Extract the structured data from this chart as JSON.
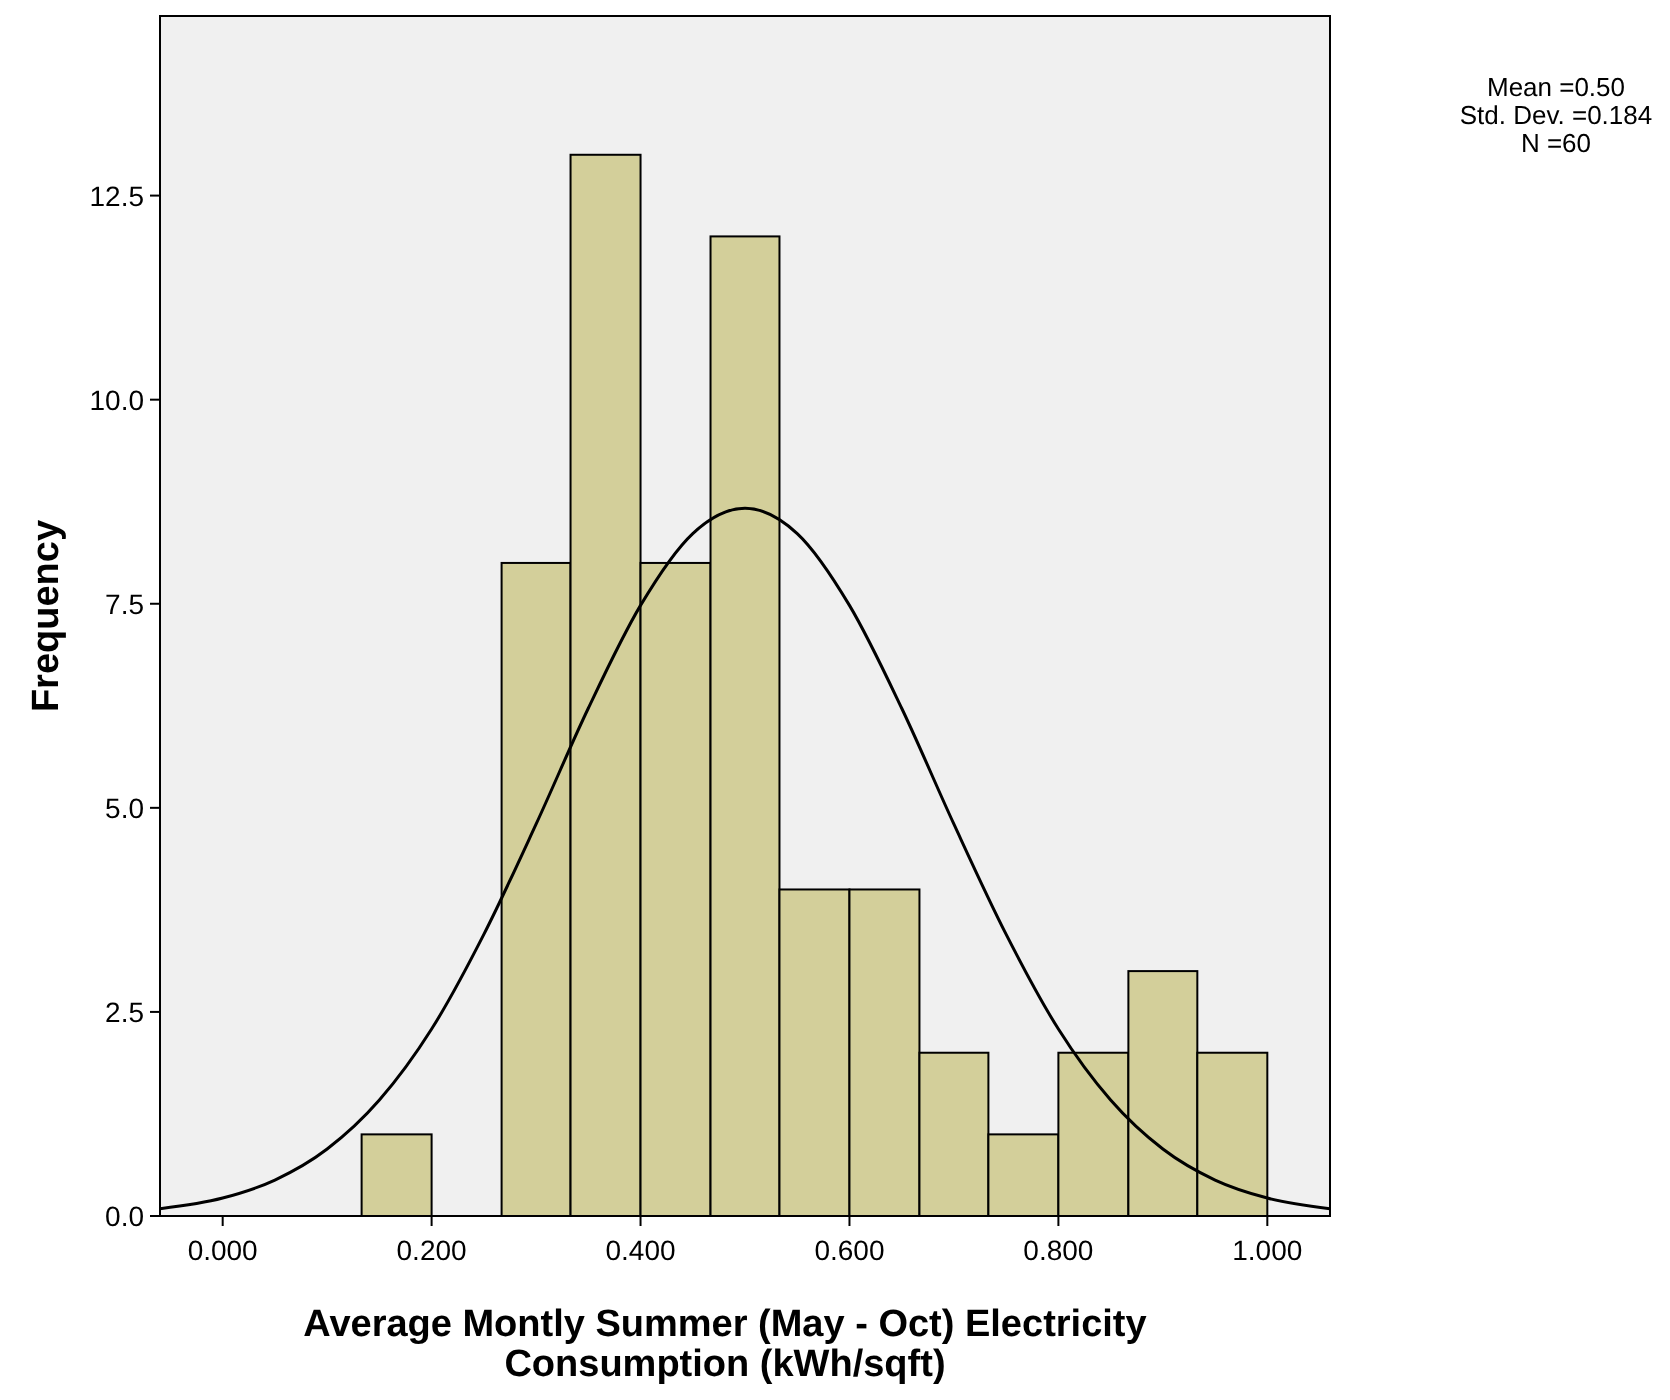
{
  "chart_data": {
    "type": "histogram",
    "xlabel": "Average Montly Summer (May - Oct) Electricity Consumption (kWh/sqft)",
    "ylabel": "Frequency",
    "annotations": [
      "Mean =0.50",
      "Std. Dev. =0.184",
      "N =60"
    ],
    "series": [
      {
        "color": "#d3cf9a",
        "bins": [
          0.133,
          0.2,
          0.267,
          0.333,
          0.4,
          0.467,
          0.533,
          0.6,
          0.667,
          0.733,
          0.8,
          0.867,
          0.933,
          1.0
        ],
        "values": [
          1,
          0,
          8,
          13,
          8,
          12,
          4,
          4,
          2,
          1,
          2,
          3,
          2
        ]
      },
      {
        "type": "line",
        "color": "#000000",
        "x": [
          -0.06,
          0.0,
          0.05,
          0.1,
          0.15,
          0.2,
          0.25,
          0.3,
          0.35,
          0.4,
          0.45,
          0.5,
          0.55,
          0.6,
          0.65,
          0.7,
          0.75,
          0.8,
          0.85,
          0.9,
          0.95,
          1.0,
          1.06
        ],
        "values": [
          0.09,
          0.22,
          0.44,
          0.82,
          1.42,
          2.29,
          3.45,
          4.8,
          6.22,
          7.48,
          8.36,
          8.67,
          8.36,
          7.48,
          6.22,
          4.8,
          3.45,
          2.29,
          1.42,
          0.82,
          0.44,
          0.22,
          0.09
        ]
      }
    ],
    "xlim": [
      -0.06,
      1.06
    ],
    "ylim": [
      0,
      14.7
    ],
    "xticks": [
      {
        "value": 0,
        "label": "0.000"
      },
      {
        "value": 0.2,
        "label": "0.200"
      },
      {
        "value": 0.4,
        "label": "0.400"
      },
      {
        "value": 0.6,
        "label": "0.600"
      },
      {
        "value": 0.8,
        "label": "0.800"
      },
      {
        "value": 1,
        "label": "1.000"
      }
    ],
    "yticks": [
      {
        "value": 0,
        "label": "0.0"
      },
      2.5,
      {
        "value": 5,
        "label": "5.0"
      },
      7.5,
      {
        "value": 10,
        "label": "10.0"
      },
      12.5
    ],
    "grid": false
  }
}
